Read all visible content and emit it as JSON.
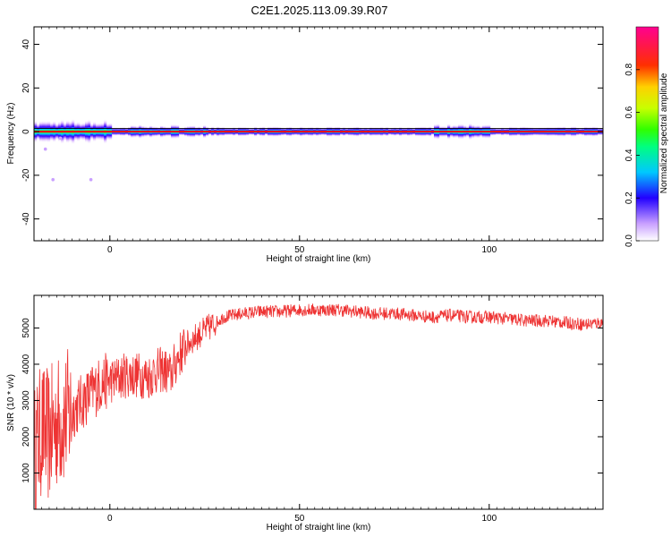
{
  "title": "C2E1.2025.113.09.39.R07",
  "chart_data": [
    {
      "type": "heatmap",
      "name": "spectrogram",
      "xlabel": "Height of straight line (km)",
      "ylabel": "Frequency (Hz)",
      "xlim": [
        -20,
        130
      ],
      "ylim": [
        -50,
        48
      ],
      "xticks": [
        0,
        50,
        100
      ],
      "yticks": [
        -40,
        -20,
        0,
        20,
        40
      ],
      "colorbar": {
        "label": "Normalized spectral amplitude",
        "range": [
          0,
          1
        ],
        "ticks": [
          0.0,
          0.2,
          0.4,
          0.6,
          0.8
        ]
      },
      "band_center_hz": 0
    },
    {
      "type": "line",
      "name": "snr",
      "xlabel": "Height of straight line (km)",
      "ylabel": "SNR (10 * v/v)",
      "xlim": [
        -20,
        130
      ],
      "ylim": [
        0,
        5900
      ],
      "xticks": [
        0,
        50,
        100
      ],
      "yticks": [
        1000,
        2000,
        3000,
        4000,
        5000
      ],
      "color": "#ee3333",
      "series": [
        {
          "x": [
            -20,
            -18,
            -16,
            -14,
            -12,
            -10,
            -8,
            -6,
            -4,
            -2,
            0,
            2,
            4,
            6,
            8,
            10,
            12,
            14,
            16,
            18,
            20,
            22,
            24,
            26,
            28,
            30,
            35,
            40,
            45,
            50,
            55,
            60,
            65,
            70,
            75,
            80,
            85,
            90,
            95,
            100,
            105,
            110,
            115,
            120,
            125,
            130
          ],
          "y": [
            1500,
            2200,
            2000,
            2400,
            2500,
            2700,
            2900,
            3100,
            3300,
            3500,
            3550,
            3600,
            3700,
            3700,
            3700,
            3650,
            3800,
            3850,
            3700,
            4200,
            4500,
            4700,
            4850,
            5000,
            5150,
            5300,
            5400,
            5450,
            5450,
            5500,
            5500,
            5500,
            5450,
            5400,
            5400,
            5350,
            5300,
            5350,
            5300,
            5300,
            5250,
            5200,
            5200,
            5150,
            5100,
            5150
          ]
        }
      ]
    }
  ]
}
